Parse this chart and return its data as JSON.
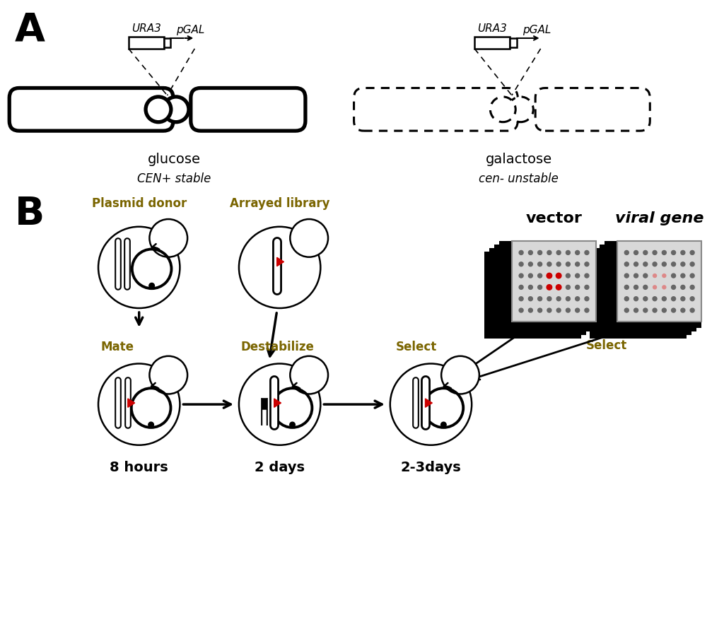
{
  "bg_color": "#ffffff",
  "panel_A_label": "A",
  "panel_B_label": "B",
  "glucose_label": "glucose",
  "cen_stable_label": "CEN+ stable",
  "galactose_label": "galactose",
  "cen_unstable_label": "cen- unstable",
  "URA3_label": "URA3",
  "pGAL_label": "pGAL",
  "plasmid_donor_label": "Plasmid donor",
  "arrayed_library_label": "Arrayed library",
  "vector_label": "vector",
  "viral_gene_label": "viral gene",
  "mate_label": "Mate",
  "destabilize_label": "Destabilize",
  "select_label": "Select",
  "eight_hours_label": "8 hours",
  "two_days_label": "2 days",
  "two_three_days_label": "2-3days",
  "gold_color": "#7A6500",
  "black_color": "#000000",
  "red_color": "#CC0000",
  "plate_gray": "#C8C8C8",
  "dot_gray": "#666666"
}
